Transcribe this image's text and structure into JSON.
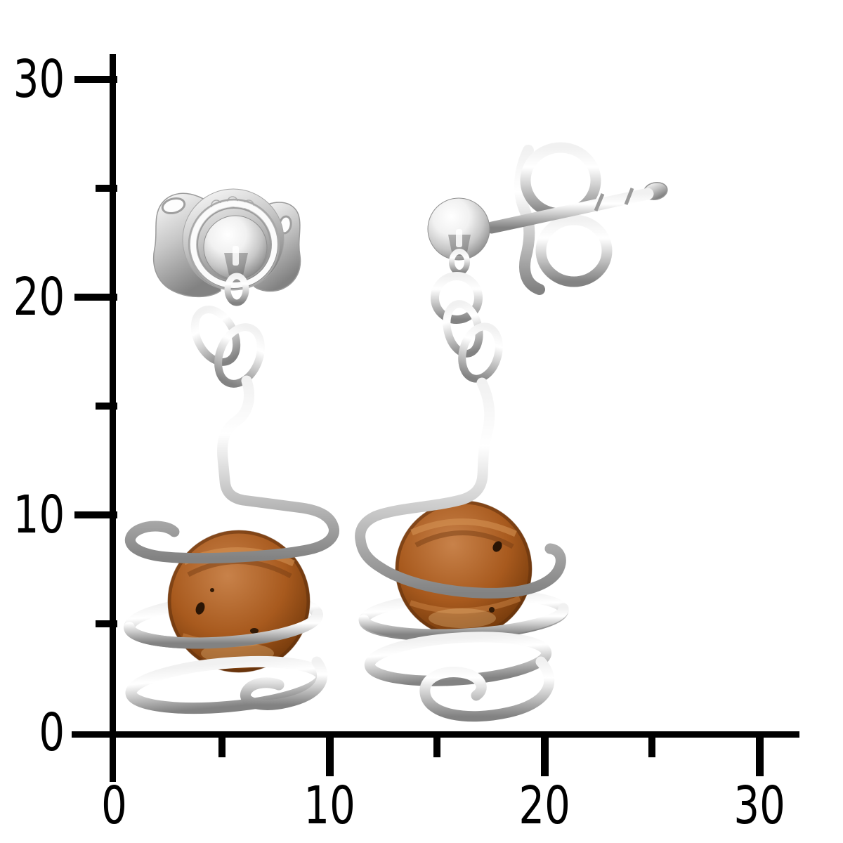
{
  "colors": {
    "background": "#ffffff",
    "axis": "#000000",
    "silver_highlight": "#ffffff",
    "silver_light": "#f1f1f1",
    "silver_mid": "#c7c7c7",
    "silver_shadow": "#828282",
    "amber_highlight": "#c8824a",
    "amber_mid": "#a85a1e",
    "amber_dark": "#6b3408"
  },
  "ruler": {
    "x_axis": {
      "labels": [
        "0",
        "10",
        "20",
        "30"
      ],
      "major_values": [
        0,
        10,
        20,
        30
      ],
      "minor_values": [
        5,
        15,
        25
      ]
    },
    "y_axis": {
      "labels": [
        "0",
        "10",
        "20",
        "30"
      ],
      "major_values": [
        0,
        10,
        20,
        30
      ],
      "minor_values": [
        5,
        15,
        25
      ]
    }
  }
}
